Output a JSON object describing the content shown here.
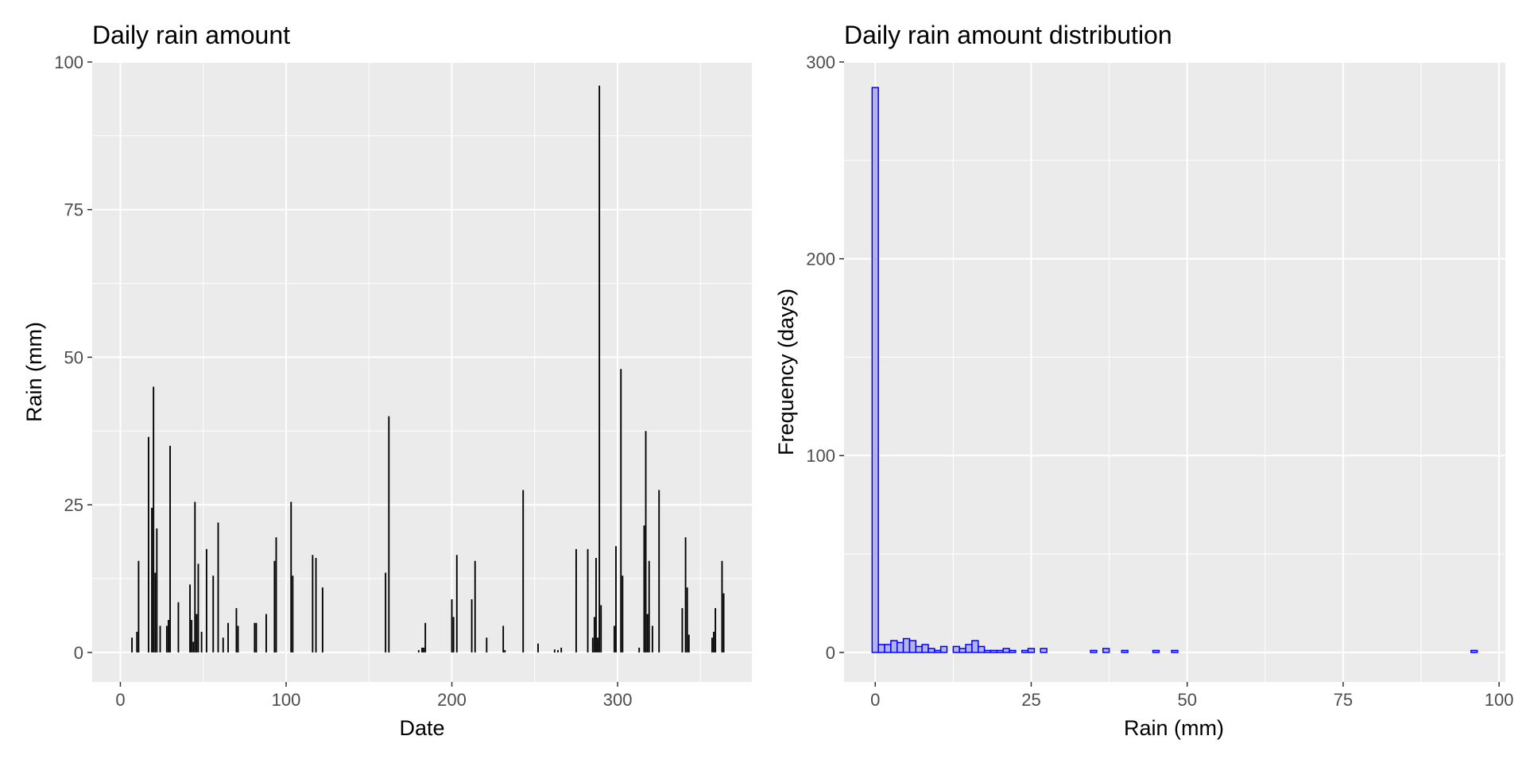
{
  "chart_data": [
    {
      "type": "bar",
      "title": "Daily rain amount",
      "xlabel": "Date",
      "ylabel": "Rain (mm)",
      "xlim": [
        -17,
        381
      ],
      "ylim": [
        -5,
        100
      ],
      "x_ticks": [
        0,
        100,
        200,
        300
      ],
      "y_ticks": [
        0,
        25,
        50,
        75,
        100
      ],
      "x_tick_labels": [
        "0",
        "100",
        "200",
        "300"
      ],
      "y_tick_labels": [
        "0",
        "25",
        "50",
        "75",
        "100"
      ],
      "grid": true,
      "bar_color": "#000000",
      "points": [
        [
          7,
          2.5
        ],
        [
          10,
          3.5
        ],
        [
          11,
          15.5
        ],
        [
          17,
          36.5
        ],
        [
          19,
          24.5
        ],
        [
          20,
          45
        ],
        [
          21,
          13.5
        ],
        [
          22,
          21
        ],
        [
          24,
          4.5
        ],
        [
          28,
          4.5
        ],
        [
          29,
          5.5
        ],
        [
          30,
          35
        ],
        [
          35,
          8.5
        ],
        [
          42,
          11.5
        ],
        [
          43,
          5.5
        ],
        [
          44,
          1.8
        ],
        [
          45,
          25.5
        ],
        [
          46,
          6.5
        ],
        [
          47,
          15
        ],
        [
          49,
          3.5
        ],
        [
          52,
          17.5
        ],
        [
          56,
          13
        ],
        [
          59,
          22
        ],
        [
          62,
          2.5
        ],
        [
          65,
          5
        ],
        [
          70,
          7.5
        ],
        [
          71,
          4.5
        ],
        [
          81,
          5
        ],
        [
          82,
          5
        ],
        [
          88,
          6.5
        ],
        [
          93,
          15.5
        ],
        [
          94,
          19.5
        ],
        [
          103,
          25.5
        ],
        [
          104,
          13
        ],
        [
          116,
          16.5
        ],
        [
          118,
          16
        ],
        [
          122,
          11
        ],
        [
          160,
          13.5
        ],
        [
          162,
          40
        ],
        [
          180,
          0.4
        ],
        [
          182,
          0.8
        ],
        [
          183,
          0.8
        ],
        [
          184,
          5
        ],
        [
          200,
          9
        ],
        [
          201,
          6
        ],
        [
          203,
          16.5
        ],
        [
          212,
          9
        ],
        [
          214,
          15.5
        ],
        [
          221,
          2.5
        ],
        [
          231,
          4.5
        ],
        [
          232,
          0.4
        ],
        [
          243,
          27.5
        ],
        [
          252,
          1.5
        ],
        [
          262,
          0.5
        ],
        [
          264,
          0.4
        ],
        [
          266,
          0.8
        ],
        [
          275,
          17.5
        ],
        [
          282,
          17.5
        ],
        [
          285,
          2.5
        ],
        [
          286,
          6
        ],
        [
          287,
          16
        ],
        [
          288,
          2.5
        ],
        [
          289,
          96
        ],
        [
          290,
          8
        ],
        [
          298,
          4.5
        ],
        [
          299,
          18
        ],
        [
          302,
          48
        ],
        [
          303,
          13
        ],
        [
          313,
          0.8
        ],
        [
          316,
          21.5
        ],
        [
          317,
          37.5
        ],
        [
          318,
          6.5
        ],
        [
          319,
          15.5
        ],
        [
          321,
          4.5
        ],
        [
          325,
          27.5
        ],
        [
          339,
          7.5
        ],
        [
          341,
          19.5
        ],
        [
          342,
          11
        ],
        [
          343,
          3
        ],
        [
          357,
          2.5
        ],
        [
          358,
          3.5
        ],
        [
          359,
          7.5
        ],
        [
          363,
          15.5
        ],
        [
          364,
          10
        ]
      ]
    },
    {
      "type": "bar",
      "title": "Daily rain amount distribution",
      "xlabel": "Rain (mm)",
      "ylabel": "Frequency (days)",
      "xlim": [
        -5,
        101
      ],
      "ylim": [
        -15,
        300
      ],
      "x_ticks": [
        0,
        25,
        50,
        75,
        100
      ],
      "y_ticks": [
        0,
        100,
        200,
        300
      ],
      "x_tick_labels": [
        "0",
        "25",
        "50",
        "75",
        "100"
      ],
      "y_tick_labels": [
        "0",
        "100",
        "200",
        "300"
      ],
      "grid": true,
      "fill_color": "#b3b3e6",
      "edge_color": "#0000ff",
      "bin_width": 1,
      "x_start": -0.5,
      "counts": [
        287,
        4,
        4,
        6,
        5,
        7,
        6,
        3,
        4,
        2,
        1,
        3,
        0,
        3,
        2,
        4,
        6,
        3,
        1,
        1,
        1,
        2,
        1,
        0,
        1,
        2,
        0,
        2,
        0,
        0,
        0,
        0,
        0,
        0,
        0,
        1,
        0,
        2,
        0,
        0,
        1,
        0,
        0,
        0,
        0,
        1,
        0,
        0,
        1,
        0,
        0,
        0,
        0,
        0,
        0,
        0,
        0,
        0,
        0,
        0,
        0,
        0,
        0,
        0,
        0,
        0,
        0,
        0,
        0,
        0,
        0,
        0,
        0,
        0,
        0,
        0,
        0,
        0,
        0,
        0,
        0,
        0,
        0,
        0,
        0,
        0,
        0,
        0,
        0,
        0,
        0,
        0,
        0,
        0,
        0,
        0,
        1
      ]
    }
  ]
}
